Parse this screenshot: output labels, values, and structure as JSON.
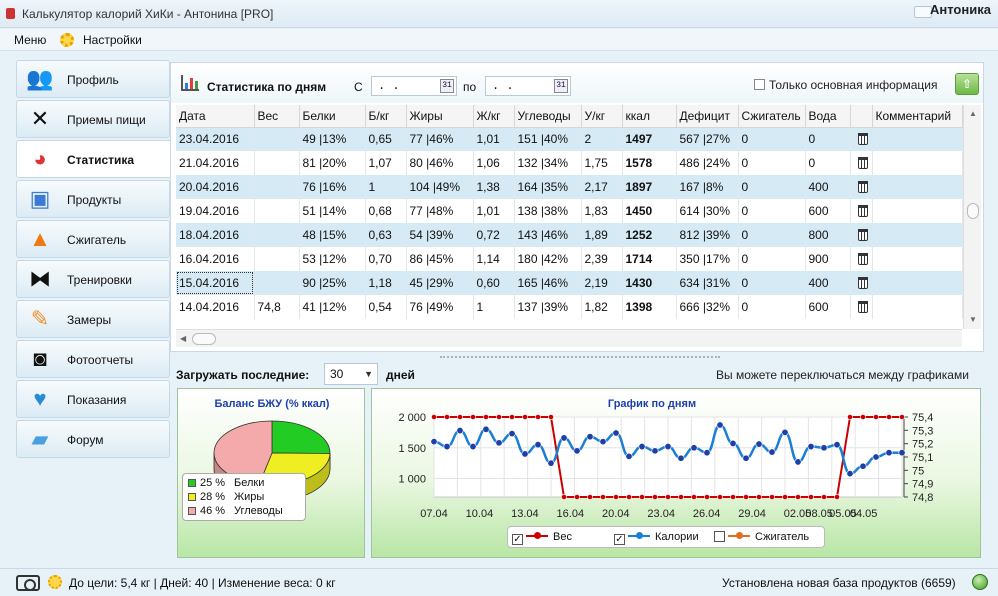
{
  "window": {
    "title": "Калькулятор калорий ХиКи - Антонина [PRO]",
    "user": "Антоника"
  },
  "menu": {
    "items": [
      "Меню",
      "Настройки"
    ]
  },
  "sidebar": {
    "items": [
      {
        "label": "Профиль",
        "icon": "people-icon"
      },
      {
        "label": "Приемы пищи",
        "icon": "fork-knife-icon"
      },
      {
        "label": "Статистика",
        "icon": "pie-chart-icon"
      },
      {
        "label": "Продукты",
        "icon": "scale-icon"
      },
      {
        "label": "Сжигатель",
        "icon": "flame-icon"
      },
      {
        "label": "Тренировки",
        "icon": "dumbbell-icon"
      },
      {
        "label": "Замеры",
        "icon": "pencil-icon"
      },
      {
        "label": "Фотоотчеты",
        "icon": "camera-icon"
      },
      {
        "label": "Показания",
        "icon": "heart-pulse-icon"
      },
      {
        "label": "Форум",
        "icon": "chat-icon"
      }
    ],
    "active_index": 2
  },
  "stats": {
    "title": "Статистика по дням",
    "from_label": "С",
    "to_label": "по",
    "from_value": ". .",
    "to_value": ". .",
    "calendar_label": "31",
    "only_main_label": "Только основная информация",
    "export_symbol": "⇧",
    "columns": [
      "Дата",
      "Вес",
      "Белки",
      "Б/кг",
      "Жиры",
      "Ж/кг",
      "Углеводы",
      "У/кг",
      "ккал",
      "Дефицит",
      "Сжигатель",
      "Вода",
      "",
      "Комментарий"
    ],
    "rows": [
      [
        "23.04.2016",
        "",
        "49 |13%",
        "0,65",
        "77 |46%",
        "1,01",
        "151 |40%",
        "2",
        "1497",
        "567 |27%",
        "0",
        "0"
      ],
      [
        "21.04.2016",
        "",
        "81 |20%",
        "1,07",
        "80 |46%",
        "1,06",
        "132 |34%",
        "1,75",
        "1578",
        "486 |24%",
        "0",
        "0"
      ],
      [
        "20.04.2016",
        "",
        "76 |16%",
        "1",
        "104 |49%",
        "1,38",
        "164 |35%",
        "2,17",
        "1897",
        "167 |8%",
        "0",
        "400"
      ],
      [
        "19.04.2016",
        "",
        "51 |14%",
        "0,68",
        "77 |48%",
        "1,01",
        "138 |38%",
        "1,83",
        "1450",
        "614 |30%",
        "0",
        "600"
      ],
      [
        "18.04.2016",
        "",
        "48 |15%",
        "0,63",
        "54 |39%",
        "0,72",
        "143 |46%",
        "1,89",
        "1252",
        "812 |39%",
        "0",
        "800"
      ],
      [
        "16.04.2016",
        "",
        "53 |12%",
        "0,70",
        "86 |45%",
        "1,14",
        "180 |42%",
        "2,39",
        "1714",
        "350 |17%",
        "0",
        "900"
      ],
      [
        "15.04.2016",
        "",
        "90 |25%",
        "1,18",
        "45 |29%",
        "0,60",
        "165 |46%",
        "2,19",
        "1430",
        "634 |31%",
        "0",
        "400"
      ],
      [
        "14.04.2016",
        "74,8",
        "41 |12%",
        "0,54",
        "76 |49%",
        "1",
        "137 |39%",
        "1,82",
        "1398",
        "666 |32%",
        "0",
        "600"
      ]
    ]
  },
  "load": {
    "label": "Загружать последние:",
    "value": "30",
    "unit": "дней",
    "hint": "Вы можете переключаться между графиками"
  },
  "pie": {
    "title": "Баланс БЖУ (% ккал)",
    "slices": [
      {
        "pct": "25 %",
        "label": "Белки",
        "value": 25,
        "color": "#22cc22"
      },
      {
        "pct": "28 %",
        "label": "Жиры",
        "value": 28,
        "color": "#eeee22"
      },
      {
        "pct": "46 %",
        "label": "Углеводы",
        "value": 46,
        "color": "#f4aaaa"
      }
    ]
  },
  "chart_data": {
    "type": "line",
    "title": "График по дням",
    "x_ticks": [
      "07.04",
      "10.04",
      "13.04",
      "16.04",
      "20.04",
      "23.04",
      "26.04",
      "29.04",
      "02.05",
      "05.05",
      "08.05",
      "04.05"
    ],
    "y_left": {
      "ticks": [
        "2 000",
        "1 500",
        "1 000"
      ],
      "range": [
        700,
        2000
      ]
    },
    "y_right": {
      "ticks": [
        "75,4",
        "75,3",
        "75,2",
        "75,1",
        "75",
        "74,9",
        "74,8"
      ],
      "range": [
        74.8,
        75.4
      ]
    },
    "legend": [
      {
        "name": "Вес",
        "checked": true,
        "color": "#cc0000"
      },
      {
        "name": "Калории",
        "checked": true,
        "color": "#1a7fd6"
      },
      {
        "name": "Сжигатель",
        "checked": false,
        "color": "#e07020"
      }
    ],
    "series": [
      {
        "name": "Вес",
        "axis": "right",
        "color": "#cc0000",
        "values": [
          75.4,
          75.4,
          75.4,
          75.4,
          75.4,
          75.4,
          75.4,
          75.4,
          75.4,
          75.4,
          74.8,
          74.8,
          74.8,
          74.8,
          74.8,
          74.8,
          74.8,
          74.8,
          74.8,
          74.8,
          74.8,
          74.8,
          74.8,
          74.8,
          74.8,
          74.8,
          74.8,
          74.8,
          74.8,
          74.8,
          74.8,
          74.8,
          75.4,
          75.4,
          75.4,
          75.4,
          75.4
        ]
      },
      {
        "name": "Калории",
        "axis": "left",
        "color": "#1a7fd6",
        "values": [
          1600,
          1520,
          1780,
          1520,
          1800,
          1580,
          1730,
          1400,
          1550,
          1250,
          1660,
          1450,
          1680,
          1600,
          1740,
          1360,
          1520,
          1450,
          1520,
          1330,
          1500,
          1420,
          1870,
          1570,
          1330,
          1560,
          1430,
          1750,
          1270,
          1520,
          1500,
          1550,
          1080,
          1200,
          1350,
          1420,
          1420
        ]
      }
    ]
  },
  "status": {
    "left": "До цели: 5,4 кг | Дней: 40 | Изменение веса: 0 кг",
    "right": "Установлена новая база продуктов (6659)"
  }
}
